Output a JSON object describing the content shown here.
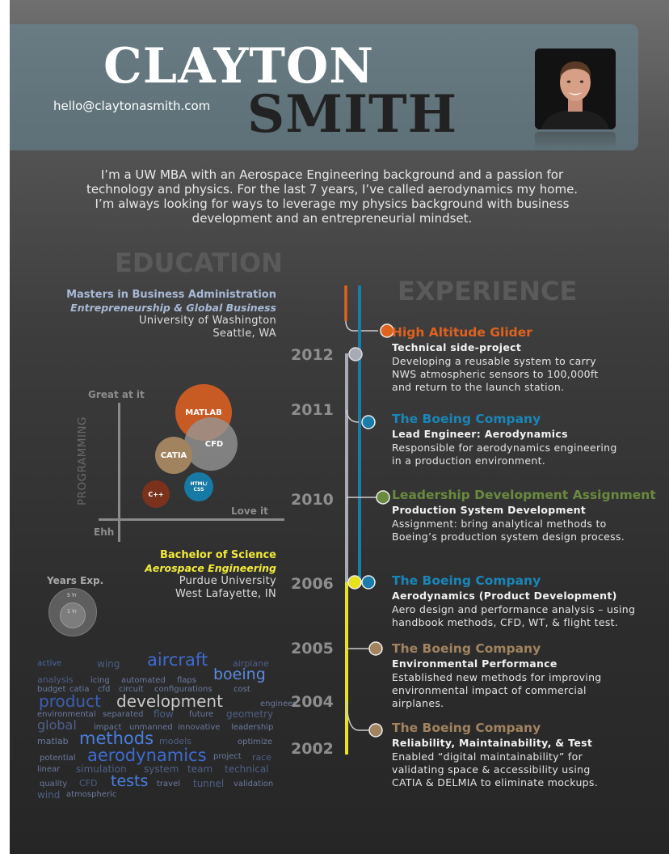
{
  "header": {
    "first_name": "CLAYTON",
    "last_name": "SMITH",
    "email": "hello@claytonasmith.com",
    "photo": "profile-photo"
  },
  "intro": "I’m a UW MBA with an Aerospace Engineering background and a passion for technology and physics.  For the last 7 years,  I’ve called aerodynamics my home.  I’m always looking for ways to leverage my physics background with business development and an entrepreneurial mindset.",
  "education": {
    "heading": "EDUCATION",
    "masters": {
      "degree": "Masters in Business Administration",
      "focus": "Entrepreneurship & Global Business",
      "school": "University of Washington",
      "location": "Seattle, WA"
    },
    "bachelors": {
      "degree": "Bachelor of Science",
      "focus": "Aerospace Engineering",
      "school": "Purdue University",
      "location": "West Lafayette, IN"
    }
  },
  "skills_chart": {
    "y_axis_label": "PROGRAMMING",
    "top_label": "Great at it",
    "right_label": "Love it",
    "origin_label": "Ehh",
    "skills": [
      {
        "name": "MATLAB",
        "color": "#c85a24"
      },
      {
        "name": "CFD",
        "color": "#8e8e8e"
      },
      {
        "name": "CATIA",
        "color": "#a2835f"
      },
      {
        "name": "HTML/ CSS",
        "color": "#1679a6"
      },
      {
        "name": "C++",
        "color": "#7a321c"
      }
    ],
    "years_label": "Years Exp.",
    "years_legend": [
      "5 Yr",
      "1 Yr"
    ]
  },
  "word_cloud": [
    {
      "text": "active",
      "color": "#4a6aa8"
    },
    {
      "text": "wing",
      "color": "#4f5f86"
    },
    {
      "text": "aircraft",
      "color": "#3d6bd0"
    },
    {
      "text": "airplane",
      "color": "#4f5f86"
    },
    {
      "text": "analysis",
      "color": "#4f5f86"
    },
    {
      "text": "icing",
      "color": "#6b7aa0"
    },
    {
      "text": "automated",
      "color": "#6b7aa0"
    },
    {
      "text": "flaps",
      "color": "#6b7aa0"
    },
    {
      "text": "boeing",
      "color": "#5b8ae0"
    },
    {
      "text": "budget",
      "color": "#6b7aa0"
    },
    {
      "text": "catia",
      "color": "#6b7aa0"
    },
    {
      "text": "cfd",
      "color": "#6b7aa0"
    },
    {
      "text": "circuit",
      "color": "#6b7aa0"
    },
    {
      "text": "configurations",
      "color": "#6b7aa0"
    },
    {
      "text": "cost",
      "color": "#6b7aa0"
    },
    {
      "text": "product",
      "color": "#3d5fb0"
    },
    {
      "text": "development",
      "color": "#c8c8c8"
    },
    {
      "text": "engineer",
      "color": "#6b7aa0"
    },
    {
      "text": "environmental",
      "color": "#6b7aa0"
    },
    {
      "text": "separated",
      "color": "#6b7aa0"
    },
    {
      "text": "flow",
      "color": "#4f5f86"
    },
    {
      "text": "future",
      "color": "#6b7aa0"
    },
    {
      "text": "geometry",
      "color": "#4f5f86"
    },
    {
      "text": "global",
      "color": "#4f5f86"
    },
    {
      "text": "impact",
      "color": "#6b7aa0"
    },
    {
      "text": "unmanned",
      "color": "#6b7aa0"
    },
    {
      "text": "innovative",
      "color": "#6b7aa0"
    },
    {
      "text": "leadership",
      "color": "#6b7aa0"
    },
    {
      "text": "matlab",
      "color": "#6b7aa0"
    },
    {
      "text": "methods",
      "color": "#4a7fe0"
    },
    {
      "text": "models",
      "color": "#4f5f86"
    },
    {
      "text": "optimize",
      "color": "#6b7aa0"
    },
    {
      "text": "potential",
      "color": "#6b7aa0"
    },
    {
      "text": "aerodynamics",
      "color": "#3d6bd0"
    },
    {
      "text": "project",
      "color": "#6b7aa0"
    },
    {
      "text": "race",
      "color": "#4f5f86"
    },
    {
      "text": "linear",
      "color": "#6b7aa0"
    },
    {
      "text": "simulation",
      "color": "#4f5f86"
    },
    {
      "text": "system",
      "color": "#4f5f86"
    },
    {
      "text": "team",
      "color": "#4f5f86"
    },
    {
      "text": "technical",
      "color": "#4f5f86"
    },
    {
      "text": "quality",
      "color": "#6b7aa0"
    },
    {
      "text": "CFD",
      "color": "#4f5f86"
    },
    {
      "text": "tests",
      "color": "#4a7fe0"
    },
    {
      "text": "travel",
      "color": "#6b7aa0"
    },
    {
      "text": "tunnel",
      "color": "#4f5f86"
    },
    {
      "text": "validation",
      "color": "#6b7aa0"
    },
    {
      "text": "wind",
      "color": "#4f5f86"
    },
    {
      "text": "atmospheric",
      "color": "#6b7aa0"
    }
  ],
  "experience": {
    "heading": "EXPERIENCE",
    "years": [
      "2012",
      "2011",
      "2010",
      "2006",
      "2005",
      "2004",
      "2002"
    ],
    "entries": [
      {
        "company": "High Altitude Glider",
        "role": "Technical side-project",
        "description": "Developing a reusable system to carry NWS atmospheric sensors to 100,000ft and return to the launch station.",
        "color": "#e0621f"
      },
      {
        "company": "The Boeing Company",
        "role": "Lead Engineer: Aerodynamics",
        "description": "Responsible for aerodynamics engineering in a production environment.",
        "color": "#1a86b8"
      },
      {
        "company": "Leadership Development Assignment",
        "role": "Production System Development",
        "description": "Assignment:  bring analytical methods to Boeing’s production system design process.",
        "color": "#6a8a3e"
      },
      {
        "company": "The Boeing Company",
        "role": "Aerodynamics (Product Development)",
        "description": "Aero design and performance analysis – using handbook methods, CFD, WT, & flight test.",
        "color": "#1a86b8"
      },
      {
        "company": "The Boeing Company",
        "role": "Environmental Performance",
        "description": "Established new methods for improving environmental impact of commercial airplanes.",
        "color": "#a2835f"
      },
      {
        "company": "The Boeing Company",
        "role": "Reliability, Maintainability, & Test",
        "description": "Enabled “digital maintainability” for validating space & accessibility using CATIA & DELMIA to eliminate mockups.",
        "color": "#a2835f"
      }
    ]
  }
}
